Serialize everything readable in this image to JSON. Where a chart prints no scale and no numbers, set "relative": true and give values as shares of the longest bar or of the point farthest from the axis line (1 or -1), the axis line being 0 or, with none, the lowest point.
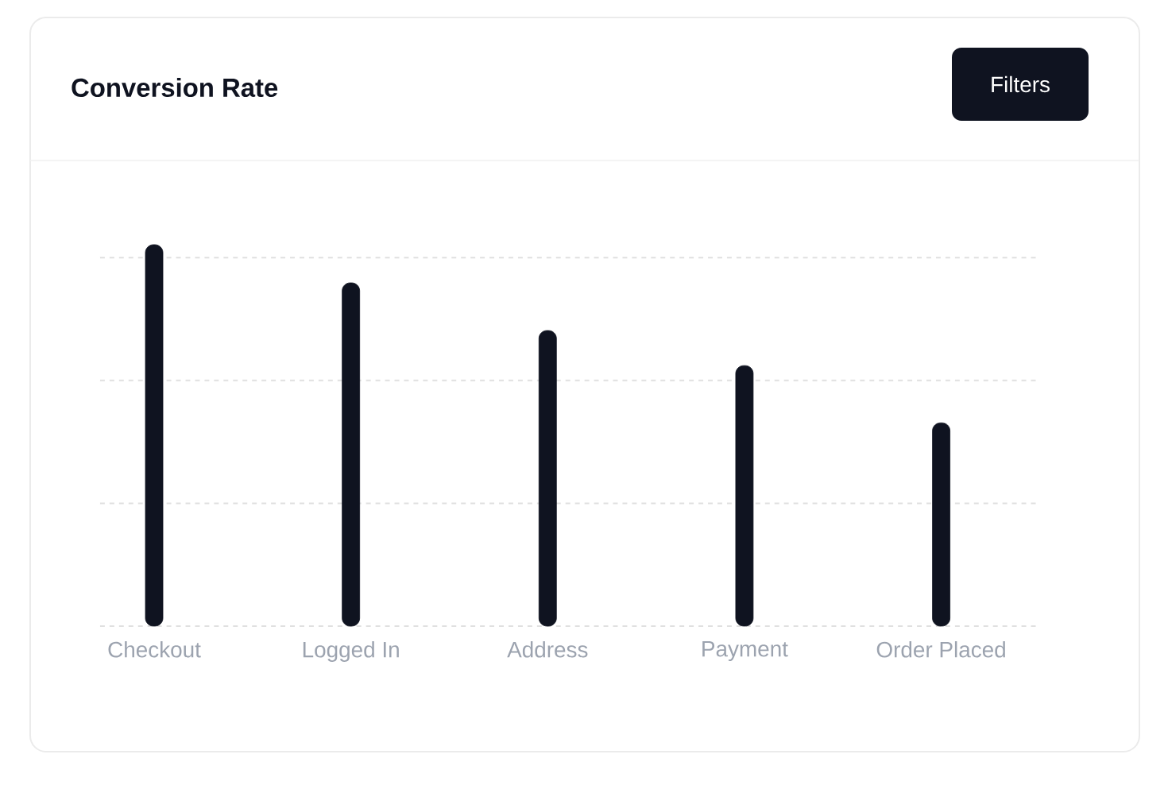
{
  "chart_data": {
    "type": "bar",
    "title": "Conversion Rate",
    "categories": [
      "Checkout",
      "Logged In",
      "Address",
      "Payment",
      "Order Placed"
    ],
    "values": [
      1,
      0.9,
      0.775,
      0.683,
      0.533
    ],
    "color": "#0f1320",
    "relative": true,
    "grid": "y",
    "annotations": [
      "Filters"
    ]
  }
}
